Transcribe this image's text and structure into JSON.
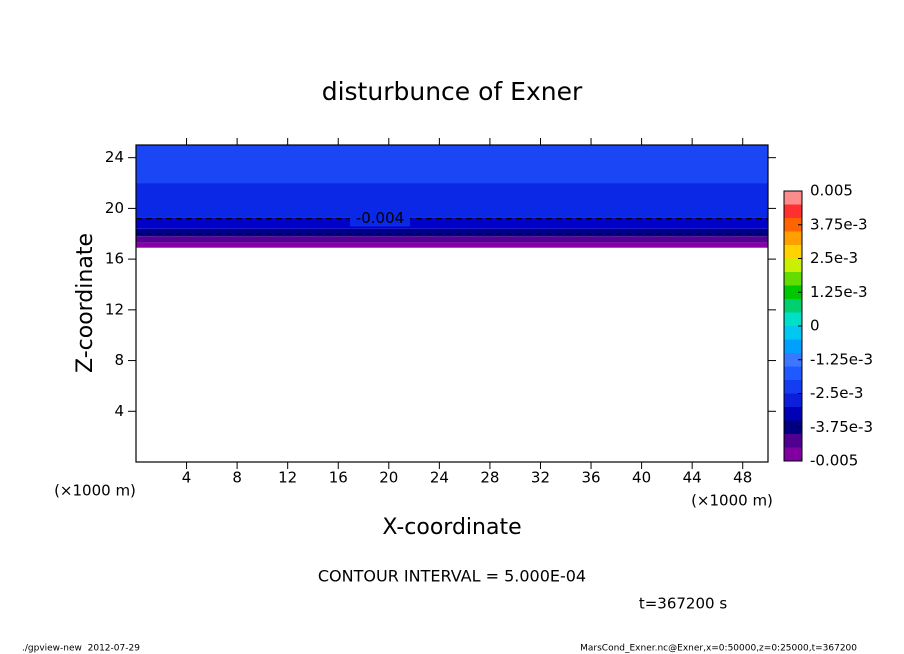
{
  "chart_data": {
    "type": "contour",
    "title": "disturbunce of Exner",
    "x_label": "X-coordinate",
    "y_label": "Z-coordinate",
    "x_unit": "(×1000 m)",
    "y_unit": "(×1000 m)",
    "xlim": [
      0,
      50
    ],
    "ylim": [
      0,
      25
    ],
    "xticks": [
      4,
      8,
      12,
      16,
      20,
      24,
      28,
      32,
      36,
      40,
      44,
      48
    ],
    "yticks": [
      4,
      8,
      12,
      16,
      20,
      24
    ],
    "bands": [
      {
        "color": "#8a00a8",
        "range": [
          16.9,
          17.3
        ]
      },
      {
        "color": "#5a0096",
        "range": [
          17.3,
          17.8
        ]
      },
      {
        "color": "#00008c",
        "range": [
          17.8,
          18.4
        ]
      },
      {
        "color": "#0000c8",
        "range": [
          18.4,
          19.3
        ]
      },
      {
        "color": "#0a28e6",
        "range": [
          19.3,
          22.0
        ]
      },
      {
        "color": "#1a46f5",
        "range": [
          22.0,
          25.0
        ]
      }
    ],
    "contour_lines": [
      {
        "value": -0.004,
        "label": "-0.004",
        "z": 19.2
      },
      {
        "value": -0.0045,
        "z": 18.0
      }
    ],
    "colorbar": {
      "levels": [
        -0.005,
        -0.0045,
        -0.004,
        -0.0035,
        -0.003,
        -0.0025,
        -0.002,
        -0.0015,
        -0.001,
        -0.0005,
        0,
        0.0005,
        0.001,
        0.0015,
        0.002,
        0.0025,
        0.003,
        0.0035,
        0.004,
        0.0045,
        0.005
      ],
      "colors": [
        "#8000a0",
        "#500090",
        "#000080",
        "#0000b4",
        "#0a1edc",
        "#143cf0",
        "#1e5aff",
        "#3c78ff",
        "#00a0ff",
        "#00c8f0",
        "#00e0c8",
        "#00d070",
        "#00c800",
        "#64dc00",
        "#c8f000",
        "#ffd200",
        "#ffa000",
        "#ff6400",
        "#ff3030",
        "#ff8c8c"
      ],
      "ticks": [
        {
          "value": 0.005,
          "label": "0.005"
        },
        {
          "value": 0.00375,
          "label": "3.75e-3"
        },
        {
          "value": 0.0025,
          "label": "2.5e-3"
        },
        {
          "value": 0.00125,
          "label": "1.25e-3"
        },
        0,
        {
          "value": -0.00125,
          "label": "-1.25e-3"
        },
        {
          "value": -0.0025,
          "label": "-2.5e-3"
        },
        {
          "value": -0.00375,
          "label": "-3.75e-3"
        },
        {
          "value": -0.005,
          "label": "-0.005"
        }
      ]
    },
    "annotations": [
      "CONTOUR INTERVAL = 5.000E-04",
      "t=367200 s"
    ],
    "footer_left": "./gpview-new  2012-07-29",
    "footer_right": "MarsCond_Exner.nc@Exner,x=0:50000,z=0:25000,t=367200"
  }
}
